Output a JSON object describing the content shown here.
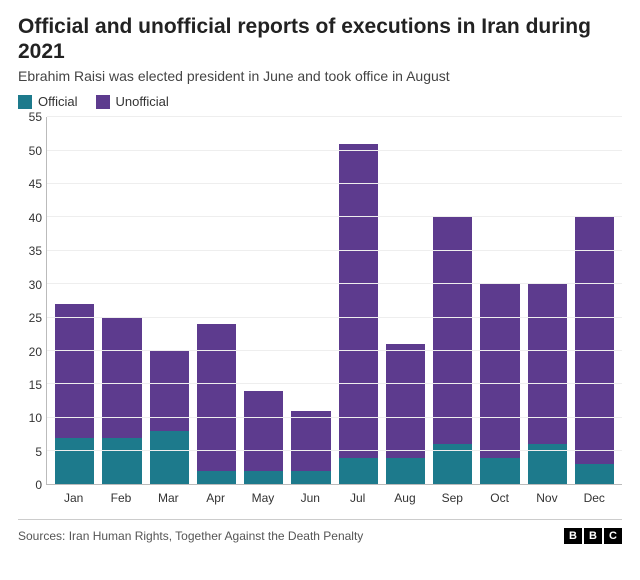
{
  "title": "Official and unofficial reports of executions in Iran during 2021",
  "subtitle": "Ebrahim Raisi was elected president in June and took office in August",
  "legend": {
    "official": "Official",
    "unofficial": "Unofficial"
  },
  "chart": {
    "type": "stacked-bar",
    "colors": {
      "official": "#1d7a8c",
      "unofficial": "#5d3b8e",
      "grid": "#eeeeee",
      "axis": "#bbbbbb",
      "background": "#ffffff"
    },
    "ylim": [
      0,
      55
    ],
    "ytick_step": 5,
    "yticks": [
      0,
      5,
      10,
      15,
      20,
      25,
      30,
      35,
      40,
      45,
      50,
      55
    ],
    "categories": [
      "Jan",
      "Feb",
      "Mar",
      "Apr",
      "May",
      "Jun",
      "Jul",
      "Aug",
      "Sep",
      "Oct",
      "Nov",
      "Dec"
    ],
    "series": {
      "official": [
        7,
        7,
        8,
        2,
        2,
        2,
        4,
        4,
        6,
        4,
        6,
        3
      ],
      "unofficial": [
        20,
        18,
        12,
        22,
        12,
        9,
        47,
        17,
        34,
        26,
        24,
        37
      ]
    },
    "label_fontsize": 12,
    "title_fontsize": 21
  },
  "source": "Sources: Iran Human Rights, Together Against the Death Penalty",
  "logo": {
    "b1": "B",
    "b2": "B",
    "b3": "C"
  }
}
